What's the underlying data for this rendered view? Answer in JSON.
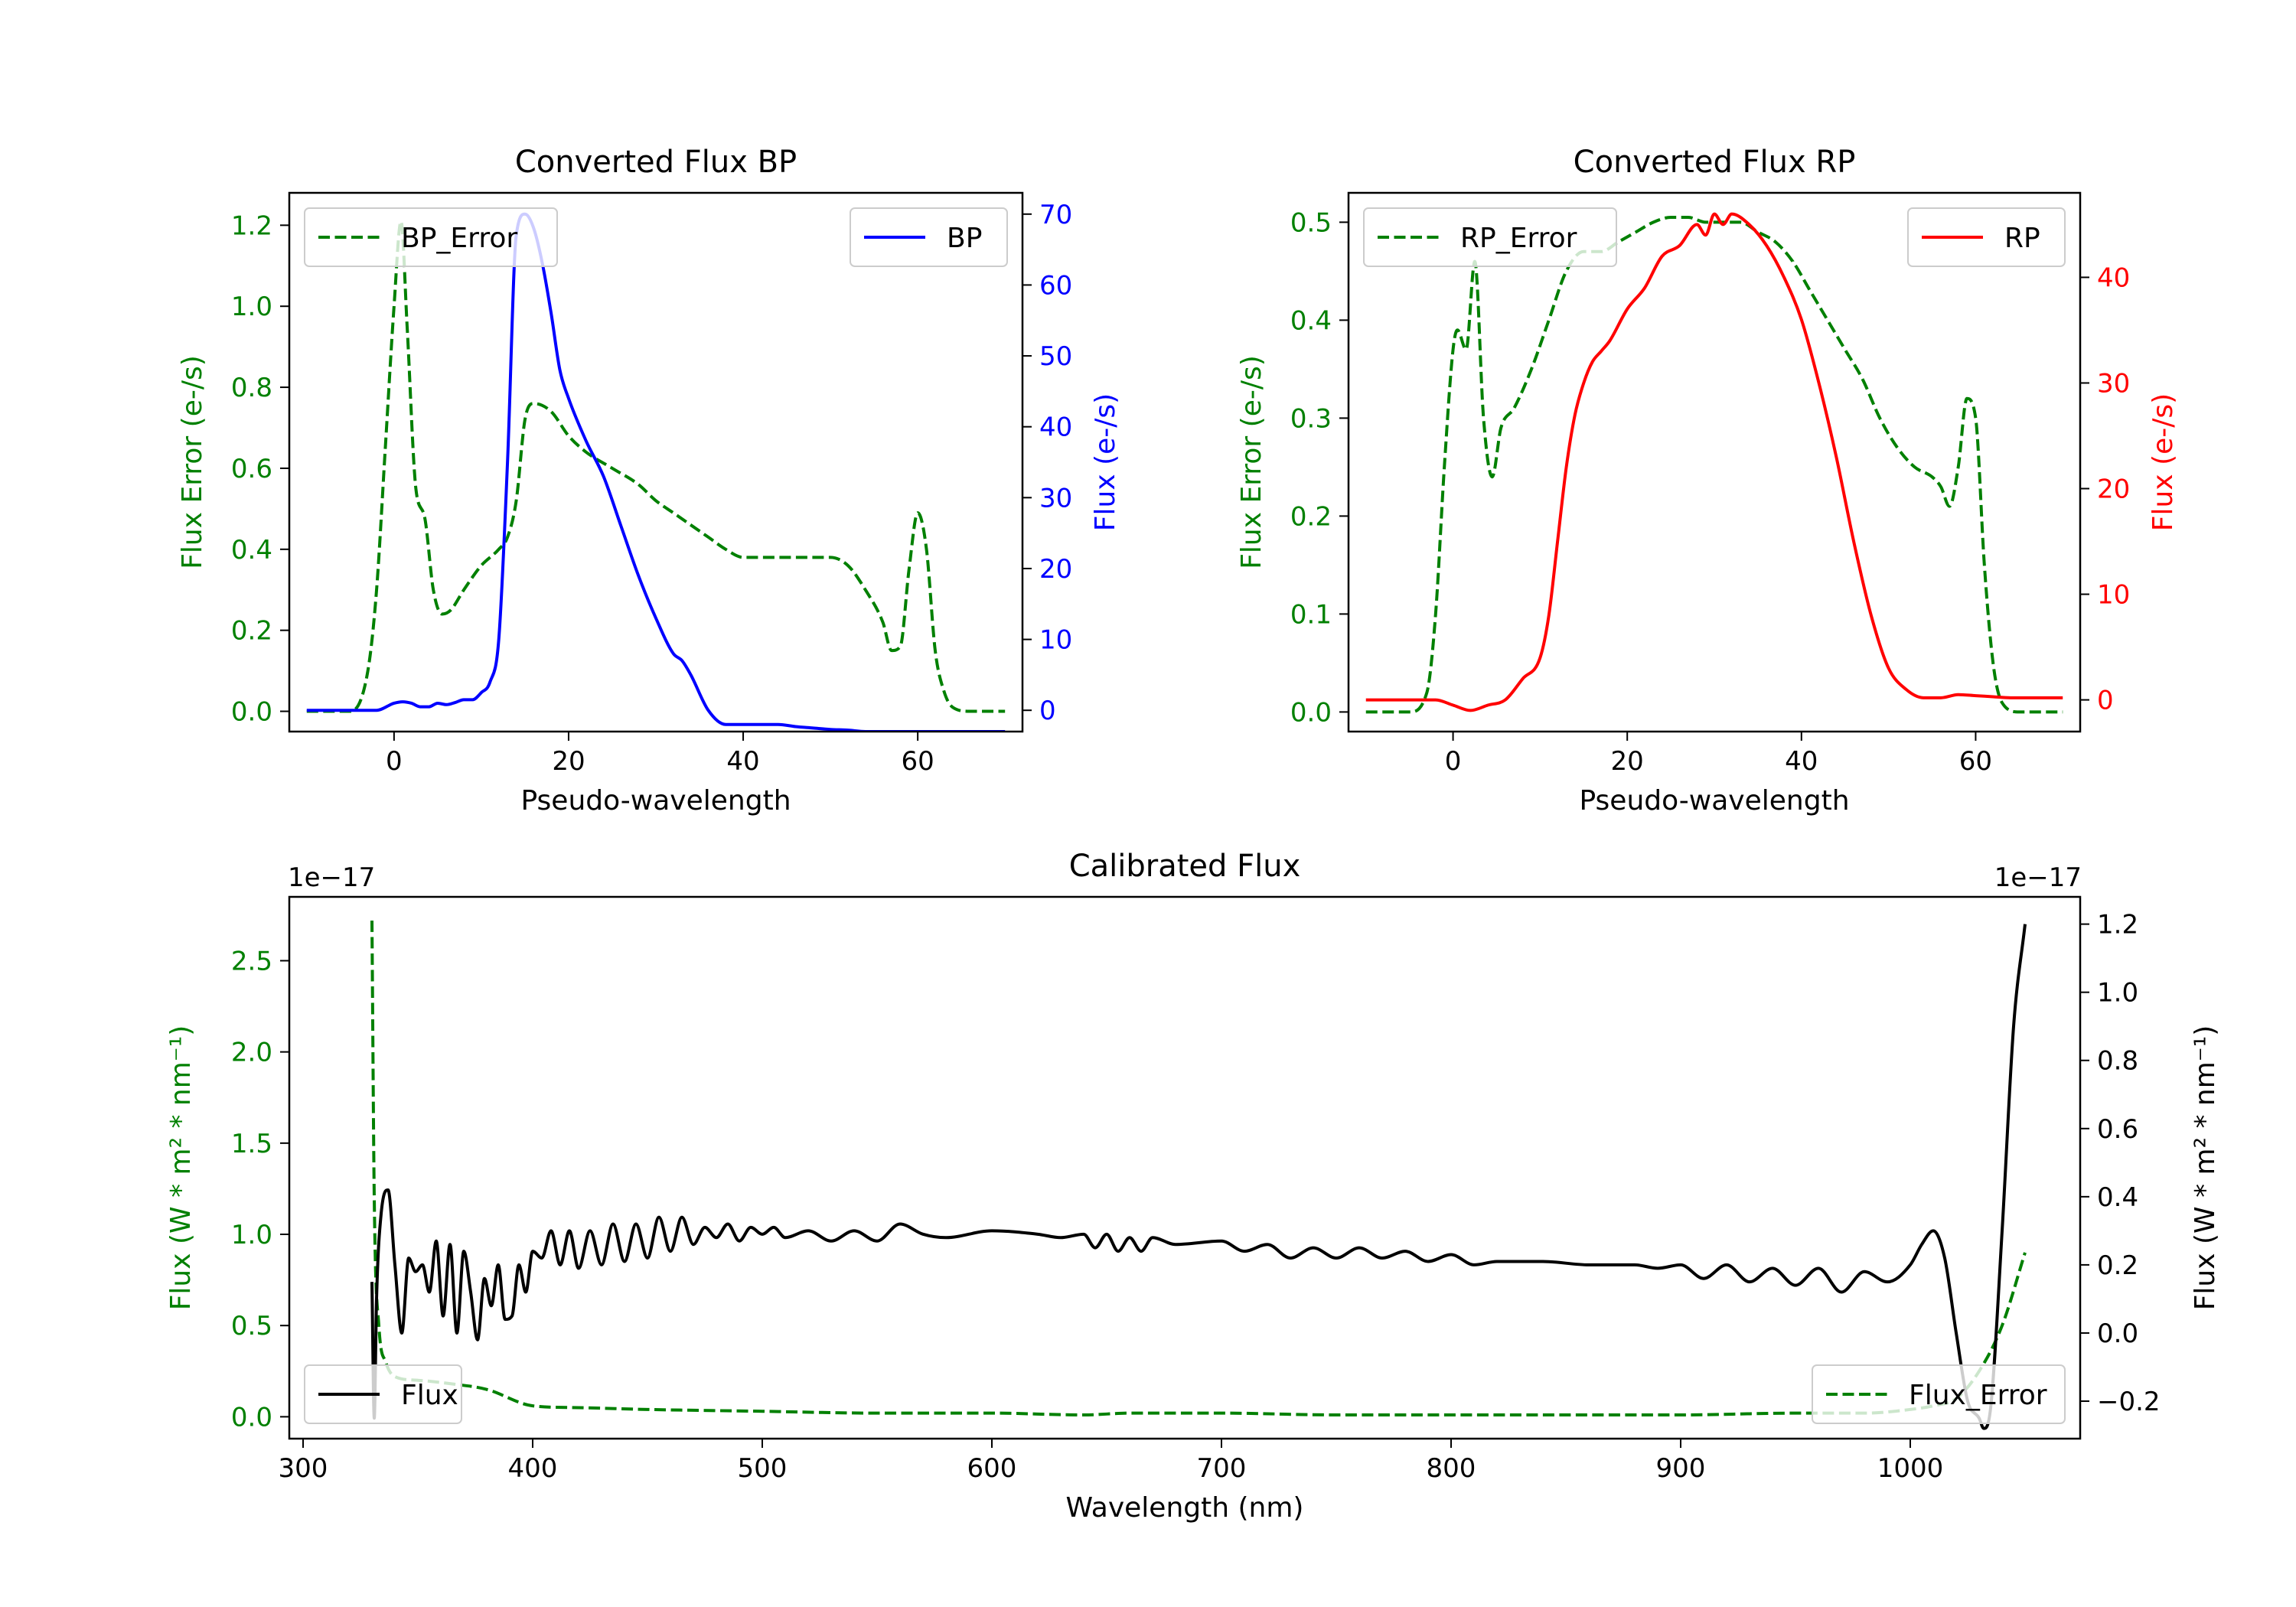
{
  "chart_data": [
    {
      "id": "bp",
      "type": "line",
      "title": "Converted Flux BP",
      "xlabel": "Pseudo-wavelength",
      "xlim": [
        -12,
        72
      ],
      "xticks": [
        "0",
        "20",
        "40",
        "60"
      ],
      "left_axis": {
        "label": "Flux Error (e-/s)",
        "color": "#008000",
        "ylim": [
          -0.05,
          1.28
        ],
        "ticks": [
          "0.0",
          "0.2",
          "0.4",
          "0.6",
          "0.8",
          "1.0",
          "1.2"
        ]
      },
      "right_axis": {
        "label": "Flux (e-/s)",
        "color": "#0000ff",
        "ylim": [
          -3.0,
          73.0
        ],
        "ticks": [
          "0",
          "10",
          "20",
          "30",
          "40",
          "50",
          "60",
          "70"
        ]
      },
      "series": [
        {
          "name": "BP_Error",
          "axis": "left",
          "style": "dashed",
          "color": "#008000",
          "x": [
            -10,
            -5,
            -3,
            -2,
            -1,
            0,
            0.8,
            1.5,
            2.5,
            3.5,
            4.5,
            5.5,
            6.5,
            8,
            10,
            12,
            13,
            14,
            15,
            16,
            18,
            20,
            22,
            25,
            28,
            30,
            32,
            34,
            36,
            38,
            40,
            42,
            44,
            46,
            48,
            50,
            52,
            54,
            56,
            57,
            58,
            59,
            60,
            61,
            62,
            63,
            64,
            66,
            70
          ],
          "y": [
            0.0,
            0.0,
            0.1,
            0.3,
            0.65,
            1.0,
            1.21,
            0.95,
            0.55,
            0.48,
            0.3,
            0.24,
            0.25,
            0.3,
            0.36,
            0.4,
            0.43,
            0.52,
            0.72,
            0.76,
            0.74,
            0.68,
            0.64,
            0.6,
            0.56,
            0.52,
            0.49,
            0.46,
            0.43,
            0.4,
            0.38,
            0.38,
            0.38,
            0.38,
            0.38,
            0.38,
            0.36,
            0.3,
            0.22,
            0.15,
            0.16,
            0.35,
            0.49,
            0.4,
            0.15,
            0.05,
            0.01,
            0.0,
            0.0
          ]
        },
        {
          "name": "BP",
          "axis": "right",
          "style": "solid",
          "color": "#0000ff",
          "x": [
            -10,
            -2,
            0,
            1,
            2,
            3,
            4,
            5,
            6,
            7,
            8,
            9,
            10,
            11,
            12,
            13,
            14,
            15,
            16,
            17,
            18,
            19,
            20,
            22,
            24,
            26,
            28,
            30,
            32,
            33,
            34,
            36,
            38,
            40,
            42,
            44,
            46,
            48,
            50,
            52,
            54,
            56,
            58,
            60,
            62,
            64,
            66,
            70
          ],
          "y": [
            0,
            0,
            1,
            1.2,
            1.0,
            0.5,
            0.5,
            1.0,
            0.8,
            1.1,
            1.5,
            1.5,
            2.5,
            4,
            10,
            35,
            67,
            70,
            68,
            63,
            56,
            48,
            44,
            38,
            33,
            26,
            19,
            13,
            8,
            7,
            5,
            0,
            -2,
            -2,
            -2,
            -2,
            -2.3,
            -2.5,
            -2.7,
            -2.8,
            -3,
            -3,
            -3,
            -3,
            -3,
            -3,
            -3,
            -3
          ]
        }
      ],
      "legends": [
        {
          "location": "upper-left",
          "entries": [
            "BP_Error"
          ]
        },
        {
          "location": "upper-right",
          "entries": [
            "BP"
          ]
        }
      ]
    },
    {
      "id": "rp",
      "type": "line",
      "title": "Converted Flux RP",
      "xlabel": "Pseudo-wavelength",
      "xlim": [
        -12,
        72
      ],
      "xticks": [
        "0",
        "20",
        "40",
        "60"
      ],
      "left_axis": {
        "label": "Flux Error (e-/s)",
        "color": "#008000",
        "ylim": [
          -0.02,
          0.53
        ],
        "ticks": [
          "0.0",
          "0.1",
          "0.2",
          "0.3",
          "0.4",
          "0.5"
        ]
      },
      "right_axis": {
        "label": "Flux (e-/s)",
        "color": "#ff0000",
        "ylim": [
          -3.0,
          48.0
        ],
        "ticks": [
          "0",
          "10",
          "20",
          "30",
          "40"
        ]
      },
      "series": [
        {
          "name": "RP_Error",
          "axis": "left",
          "style": "dashed",
          "color": "#008000",
          "x": [
            -10,
            -5,
            -3,
            -2,
            -1,
            0,
            0.5,
            1.5,
            2.5,
            3.5,
            4.5,
            5.5,
            7,
            9,
            11,
            13,
            15,
            17,
            19,
            21,
            23,
            25,
            27,
            29,
            31,
            33,
            35,
            37,
            39,
            41,
            43,
            45,
            47,
            49,
            51,
            53,
            55,
            56,
            57,
            58,
            59,
            60,
            61,
            62,
            63,
            65,
            70
          ],
          "y": [
            0.0,
            0.0,
            0.02,
            0.1,
            0.25,
            0.37,
            0.39,
            0.37,
            0.46,
            0.3,
            0.24,
            0.29,
            0.31,
            0.35,
            0.4,
            0.45,
            0.47,
            0.47,
            0.48,
            0.49,
            0.5,
            0.505,
            0.505,
            0.5,
            0.5,
            0.5,
            0.49,
            0.48,
            0.46,
            0.43,
            0.4,
            0.37,
            0.34,
            0.3,
            0.27,
            0.25,
            0.24,
            0.23,
            0.21,
            0.25,
            0.32,
            0.3,
            0.15,
            0.05,
            0.01,
            0.0,
            0.0
          ]
        },
        {
          "name": "RP",
          "axis": "right",
          "style": "solid",
          "color": "#ff0000",
          "x": [
            -10,
            -2,
            0,
            2,
            4,
            6,
            8,
            10,
            11,
            12,
            13,
            14,
            15,
            16,
            17,
            18,
            20,
            22,
            24,
            26,
            28,
            29,
            30,
            31,
            32,
            34,
            36,
            38,
            40,
            42,
            44,
            46,
            48,
            50,
            52,
            54,
            56,
            58,
            60,
            62,
            64,
            70
          ],
          "y": [
            0,
            0,
            -0.5,
            -1,
            -0.5,
            0,
            2,
            4,
            8,
            15,
            22,
            27,
            30,
            32,
            33,
            34,
            37,
            39,
            42,
            43,
            45,
            44,
            46,
            45,
            46,
            45,
            43,
            40,
            36,
            30,
            23,
            15,
            8,
            3,
            1,
            0.2,
            0.2,
            0.5,
            0.4,
            0.3,
            0.2,
            0.2
          ]
        }
      ],
      "legends": [
        {
          "location": "upper-left",
          "entries": [
            "RP_Error"
          ]
        },
        {
          "location": "upper-right",
          "entries": [
            "RP"
          ]
        }
      ]
    },
    {
      "id": "cal",
      "type": "line",
      "title": "Calibrated Flux",
      "xlabel": "Wavelength (nm)",
      "xlim": [
        294,
        1074
      ],
      "xticks": [
        "300",
        "400",
        "500",
        "600",
        "700",
        "800",
        "900",
        "1000"
      ],
      "left_axis": {
        "label": "Flux (W * m² * nm⁻¹)",
        "color": "#008000",
        "offset_text": "1e−17",
        "ylim": [
          -0.12,
          2.85
        ],
        "ticks": [
          "0.0",
          "0.5",
          "1.0",
          "1.5",
          "2.0",
          "2.5"
        ]
      },
      "right_axis": {
        "label": "Flux (W * m² * nm⁻¹)",
        "color": "#000000",
        "offset_text": "1e−17",
        "ylim": [
          -0.31,
          1.28
        ],
        "ticks": [
          "−0.2",
          "0.0",
          "0.2",
          "0.4",
          "0.6",
          "0.8",
          "1.0",
          "1.2"
        ]
      },
      "series": [
        {
          "name": "Flux_Error",
          "axis": "left",
          "style": "dashed",
          "color": "#008000",
          "x": [
            330,
            331,
            333,
            336,
            340,
            350,
            365,
            380,
            400,
            420,
            450,
            500,
            550,
            600,
            640,
            660,
            700,
            750,
            800,
            850,
            900,
            950,
            980,
            1000,
            1010,
            1020,
            1030,
            1040,
            1050
          ],
          "y": [
            2.72,
            1.2,
            0.5,
            0.3,
            0.22,
            0.2,
            0.18,
            0.15,
            0.06,
            0.05,
            0.04,
            0.03,
            0.02,
            0.02,
            0.01,
            0.02,
            0.02,
            0.01,
            0.01,
            0.01,
            0.01,
            0.02,
            0.02,
            0.04,
            0.06,
            0.1,
            0.25,
            0.5,
            0.9
          ]
        },
        {
          "name": "Flux",
          "axis": "right",
          "style": "solid",
          "color": "#000000",
          "x": [
            330,
            331,
            332,
            334,
            337,
            340,
            343,
            346,
            349,
            352,
            355,
            358,
            361,
            364,
            367,
            370,
            373,
            376,
            379,
            382,
            385,
            388,
            391,
            394,
            397,
            400,
            404,
            408,
            412,
            416,
            420,
            425,
            430,
            435,
            440,
            445,
            450,
            455,
            460,
            465,
            470,
            475,
            480,
            485,
            490,
            495,
            500,
            505,
            510,
            520,
            530,
            540,
            550,
            560,
            570,
            580,
            600,
            620,
            630,
            640,
            645,
            650,
            655,
            660,
            665,
            670,
            680,
            700,
            710,
            720,
            730,
            740,
            750,
            760,
            770,
            780,
            790,
            800,
            810,
            820,
            840,
            860,
            880,
            890,
            900,
            910,
            920,
            930,
            940,
            950,
            960,
            970,
            980,
            990,
            1000,
            1005,
            1010,
            1015,
            1020,
            1025,
            1030,
            1032,
            1035,
            1040,
            1045,
            1050
          ],
          "y": [
            0.15,
            -0.25,
            0.1,
            0.35,
            0.42,
            0.2,
            0.0,
            0.22,
            0.18,
            0.2,
            0.12,
            0.27,
            0.05,
            0.26,
            0.0,
            0.24,
            0.12,
            -0.02,
            0.16,
            0.08,
            0.2,
            0.04,
            0.05,
            0.2,
            0.12,
            0.24,
            0.22,
            0.3,
            0.2,
            0.3,
            0.19,
            0.3,
            0.2,
            0.32,
            0.21,
            0.32,
            0.22,
            0.34,
            0.24,
            0.34,
            0.26,
            0.31,
            0.28,
            0.32,
            0.27,
            0.31,
            0.29,
            0.31,
            0.28,
            0.3,
            0.27,
            0.3,
            0.27,
            0.32,
            0.29,
            0.28,
            0.3,
            0.29,
            0.28,
            0.29,
            0.25,
            0.29,
            0.24,
            0.28,
            0.24,
            0.28,
            0.26,
            0.27,
            0.24,
            0.26,
            0.22,
            0.25,
            0.22,
            0.25,
            0.22,
            0.24,
            0.21,
            0.23,
            0.2,
            0.21,
            0.21,
            0.2,
            0.2,
            0.19,
            0.2,
            0.16,
            0.2,
            0.15,
            0.19,
            0.14,
            0.19,
            0.12,
            0.18,
            0.15,
            0.2,
            0.26,
            0.3,
            0.22,
            0.0,
            -0.2,
            -0.25,
            -0.28,
            -0.22,
            0.3,
            0.9,
            1.2
          ]
        }
      ],
      "legends": [
        {
          "location": "lower-left",
          "entries": [
            "Flux"
          ]
        },
        {
          "location": "lower-right",
          "entries": [
            "Flux_Error"
          ]
        }
      ]
    }
  ]
}
